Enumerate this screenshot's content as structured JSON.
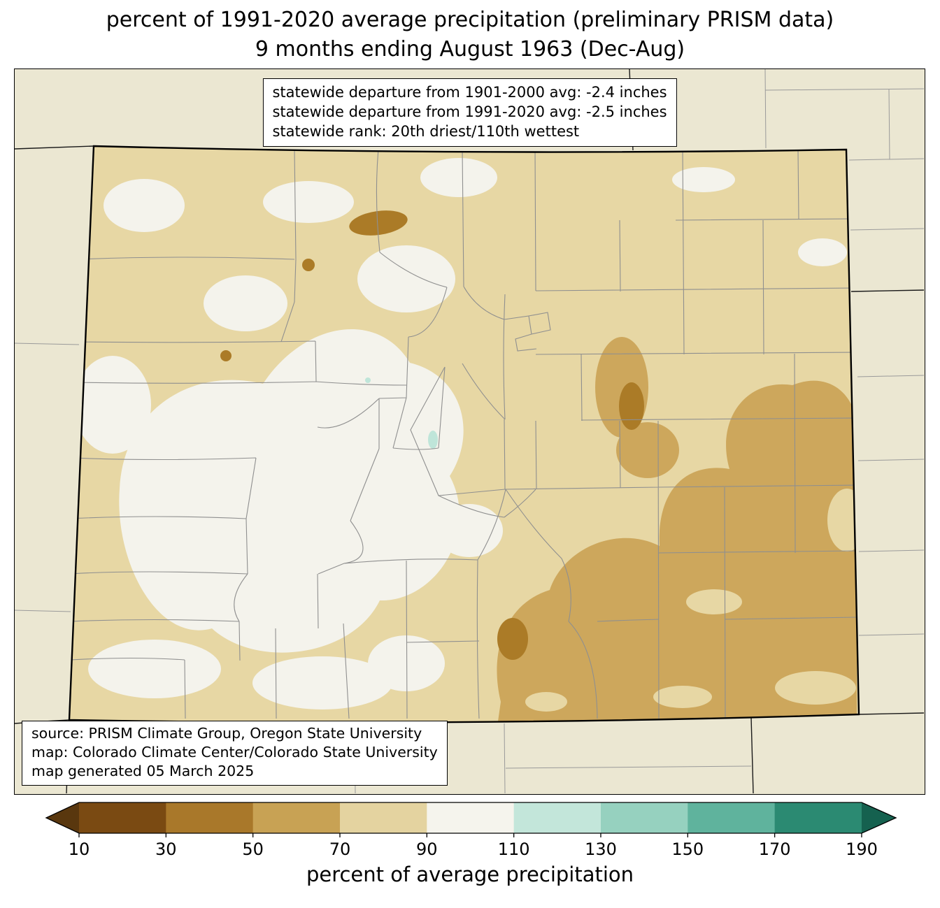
{
  "title": {
    "line1": "percent of 1991-2020 average precipitation (preliminary PRISM data)",
    "line2": "9 months ending August 1963 (Dec-Aug)"
  },
  "info_box": {
    "lines": [
      "statewide departure from 1901-2000 avg: -2.4 inches",
      "statewide departure from 1991-2020 avg: -2.5 inches",
      "statewide rank: 20th driest/110th wettest"
    ]
  },
  "source_box": {
    "lines": [
      "source: PRISM Climate Group, Oregon State University",
      "map: Colorado Climate Center/Colorado State University",
      "map generated 05 March 2025"
    ]
  },
  "colorbar": {
    "label": "percent of average precipitation",
    "ticks": [
      "10",
      "30",
      "50",
      "70",
      "90",
      "110",
      "130",
      "150",
      "170",
      "190"
    ],
    "extend_low_color": "#59370e",
    "extend_high_color": "#15614f",
    "segments": [
      {
        "range": "10-30",
        "color": "#7a4a12"
      },
      {
        "range": "30-50",
        "color": "#a9782a"
      },
      {
        "range": "50-70",
        "color": "#c8a254"
      },
      {
        "range": "70-90",
        "color": "#e4d3a0"
      },
      {
        "range": "90-110",
        "color": "#f5f4ed"
      },
      {
        "range": "110-130",
        "color": "#c3e6da"
      },
      {
        "range": "130-150",
        "color": "#96d1bf"
      },
      {
        "range": "150-170",
        "color": "#5fb39d"
      },
      {
        "range": "170-190",
        "color": "#2b8a72"
      }
    ]
  },
  "map": {
    "region_label": "Colorado statewide percent-of-average precipitation map",
    "palette": {
      "surround": "#ebe7d2",
      "base_70_90": "#e7d7a4",
      "white_90_110": "#f4f3ec",
      "tan_50_70": "#cda75c",
      "brown_30_50": "#ab7b27",
      "teal_110_130": "#bfe5d9"
    }
  }
}
